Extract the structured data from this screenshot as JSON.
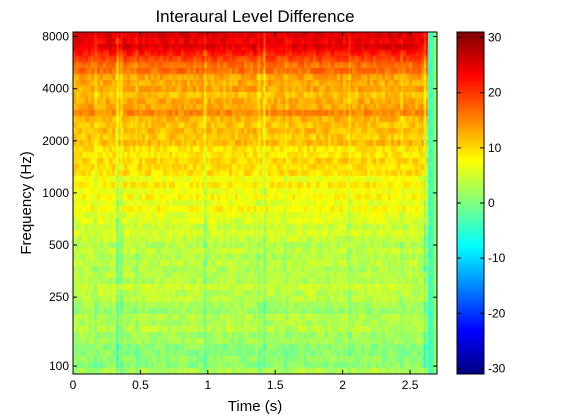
{
  "chart_data": {
    "type": "heatmap",
    "title": "Interaural Level Difference",
    "xlabel": "Time (s)",
    "ylabel": "Frequency (Hz)",
    "x_range": [
      0,
      2.7
    ],
    "y_range": [
      90,
      8500
    ],
    "y_scale": "log",
    "x_ticks": [
      {
        "value": 0,
        "label": "0"
      },
      {
        "value": 0.5,
        "label": "0.5"
      },
      {
        "value": 1,
        "label": "1"
      },
      {
        "value": 1.5,
        "label": "1.5"
      },
      {
        "value": 2,
        "label": "2"
      },
      {
        "value": 2.5,
        "label": "2.5"
      }
    ],
    "y_ticks": [
      {
        "value": 100,
        "label": "100"
      },
      {
        "value": 250,
        "label": "250"
      },
      {
        "value": 500,
        "label": "500"
      },
      {
        "value": 1000,
        "label": "1000"
      },
      {
        "value": 2000,
        "label": "2000"
      },
      {
        "value": 4000,
        "label": "4000"
      },
      {
        "value": 8000,
        "label": "8000"
      }
    ],
    "colorbar": {
      "colormap": "jet",
      "range": [
        -31,
        31
      ],
      "ticks": [
        {
          "value": -30,
          "label": "-30"
        },
        {
          "value": -20,
          "label": "-20"
        },
        {
          "value": -10,
          "label": "-10"
        },
        {
          "value": 0,
          "label": "0"
        },
        {
          "value": 10,
          "label": "10"
        },
        {
          "value": 20,
          "label": "20"
        },
        {
          "value": 30,
          "label": "30"
        }
      ]
    },
    "active_time_end": 2.63,
    "background_ild_after_end": 1,
    "ild_profile": [
      {
        "freq": 90,
        "ild": 2
      },
      {
        "freq": 120,
        "ild": 2
      },
      {
        "freq": 160,
        "ild": 2.5
      },
      {
        "freq": 220,
        "ild": 3
      },
      {
        "freq": 300,
        "ild": 3.5
      },
      {
        "freq": 400,
        "ild": 4
      },
      {
        "freq": 500,
        "ild": 4.5
      },
      {
        "freq": 650,
        "ild": 5.5
      },
      {
        "freq": 800,
        "ild": 6.5
      },
      {
        "freq": 1000,
        "ild": 7.5
      },
      {
        "freq": 1300,
        "ild": 8.5
      },
      {
        "freq": 1600,
        "ild": 10
      },
      {
        "freq": 2000,
        "ild": 11.5
      },
      {
        "freq": 2500,
        "ild": 12.5
      },
      {
        "freq": 3000,
        "ild": 14
      },
      {
        "freq": 3500,
        "ild": 13
      },
      {
        "freq": 4000,
        "ild": 12
      },
      {
        "freq": 4600,
        "ild": 14
      },
      {
        "freq": 5200,
        "ild": 16
      },
      {
        "freq": 6000,
        "ild": 19
      },
      {
        "freq": 7000,
        "ild": 24
      },
      {
        "freq": 8500,
        "ild": 27
      }
    ],
    "transient_columns": [
      {
        "time": 0.17,
        "ild_shift": -4
      },
      {
        "time": 0.33,
        "ild_shift": -8
      },
      {
        "time": 0.36,
        "ild_shift": -5
      },
      {
        "time": 0.47,
        "ild_shift": -3
      },
      {
        "time": 0.98,
        "ild_shift": -6
      },
      {
        "time": 1.38,
        "ild_shift": -4
      },
      {
        "time": 1.42,
        "ild_shift": -6
      },
      {
        "time": 1.58,
        "ild_shift": -3
      },
      {
        "time": 2.05,
        "ild_shift": -4
      },
      {
        "time": 2.44,
        "ild_shift": -3
      },
      {
        "time": 2.61,
        "ild_shift": -9
      },
      {
        "time": 2.64,
        "ild_shift": -12
      }
    ]
  }
}
